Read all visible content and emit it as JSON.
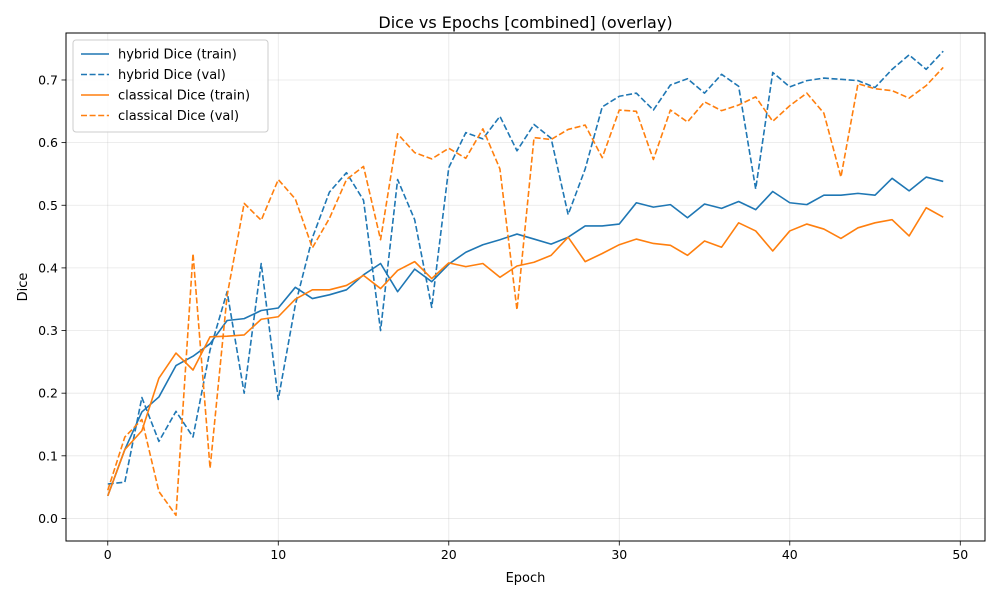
{
  "chart_data": {
    "type": "line",
    "title": "Dice vs Epochs [combined] (overlay)",
    "xlabel": "Epoch",
    "ylabel": "Dice",
    "xlim": [
      -2.45,
      51.45
    ],
    "ylim": [
      -0.036,
      0.775
    ],
    "xticks": [
      "0",
      "10",
      "20",
      "30",
      "40",
      "50"
    ],
    "xtick_values": [
      0,
      10,
      20,
      30,
      40,
      50
    ],
    "yticks": [
      "0.0",
      "0.1",
      "0.2",
      "0.3",
      "0.4",
      "0.5",
      "0.6",
      "0.7"
    ],
    "ytick_values": [
      0,
      0.1,
      0.2,
      0.3,
      0.4,
      0.5,
      0.6,
      0.7
    ],
    "grid": true,
    "legend_position": "top-left",
    "x": [
      0,
      1,
      2,
      3,
      4,
      5,
      6,
      7,
      8,
      9,
      10,
      11,
      12,
      13,
      14,
      15,
      16,
      17,
      18,
      19,
      20,
      21,
      22,
      23,
      24,
      25,
      26,
      27,
      28,
      29,
      30,
      31,
      32,
      33,
      34,
      35,
      36,
      37,
      38,
      39,
      40,
      41,
      42,
      43,
      44,
      45,
      46,
      47,
      48,
      49
    ],
    "series": [
      {
        "name": "hybrid Dice (train)",
        "color": "#1f77b4",
        "dashed": false,
        "values": [
          0.036,
          0.11,
          0.17,
          0.194,
          0.244,
          0.259,
          0.279,
          0.316,
          0.319,
          0.332,
          0.336,
          0.369,
          0.351,
          0.357,
          0.365,
          0.389,
          0.407,
          0.362,
          0.398,
          0.378,
          0.406,
          0.425,
          0.437,
          0.445,
          0.454,
          0.446,
          0.438,
          0.449,
          0.467,
          0.467,
          0.47,
          0.504,
          0.497,
          0.501,
          0.48,
          0.502,
          0.495,
          0.506,
          0.493,
          0.522,
          0.504,
          0.501,
          0.516,
          0.516,
          0.519,
          0.516,
          0.543,
          0.523,
          0.545,
          0.538
        ]
      },
      {
        "name": "hybrid Dice (val)",
        "color": "#1f77b4",
        "dashed": true,
        "values": [
          0.055,
          0.058,
          0.193,
          0.123,
          0.171,
          0.13,
          0.269,
          0.362,
          0.2,
          0.407,
          0.19,
          0.341,
          0.448,
          0.521,
          0.552,
          0.508,
          0.3,
          0.541,
          0.477,
          0.337,
          0.56,
          0.616,
          0.606,
          0.642,
          0.587,
          0.629,
          0.607,
          0.485,
          0.558,
          0.657,
          0.674,
          0.679,
          0.652,
          0.692,
          0.702,
          0.679,
          0.709,
          0.69,
          0.526,
          0.712,
          0.689,
          0.699,
          0.703,
          0.701,
          0.699,
          0.688,
          0.717,
          0.74,
          0.717,
          0.746
        ]
      },
      {
        "name": "classical Dice (train)",
        "color": "#ff7f0e",
        "dashed": false,
        "values": [
          0.036,
          0.11,
          0.14,
          0.224,
          0.264,
          0.237,
          0.29,
          0.291,
          0.293,
          0.318,
          0.322,
          0.35,
          0.365,
          0.365,
          0.372,
          0.388,
          0.367,
          0.396,
          0.41,
          0.383,
          0.408,
          0.402,
          0.407,
          0.385,
          0.403,
          0.409,
          0.42,
          0.449,
          0.41,
          0.423,
          0.437,
          0.446,
          0.439,
          0.436,
          0.42,
          0.443,
          0.433,
          0.472,
          0.459,
          0.427,
          0.459,
          0.47,
          0.462,
          0.447,
          0.464,
          0.472,
          0.477,
          0.451,
          0.496,
          0.481
        ]
      },
      {
        "name": "classical Dice (val)",
        "color": "#ff7f0e",
        "dashed": true,
        "values": [
          0.045,
          0.13,
          0.158,
          0.043,
          0.005,
          0.423,
          0.08,
          0.356,
          0.503,
          0.476,
          0.541,
          0.51,
          0.432,
          0.479,
          0.541,
          0.562,
          0.445,
          0.614,
          0.584,
          0.574,
          0.591,
          0.575,
          0.622,
          0.558,
          0.333,
          0.608,
          0.605,
          0.621,
          0.628,
          0.576,
          0.652,
          0.65,
          0.573,
          0.652,
          0.633,
          0.665,
          0.651,
          0.66,
          0.673,
          0.634,
          0.659,
          0.679,
          0.647,
          0.545,
          0.694,
          0.686,
          0.683,
          0.671,
          0.691,
          0.72
        ]
      }
    ]
  }
}
